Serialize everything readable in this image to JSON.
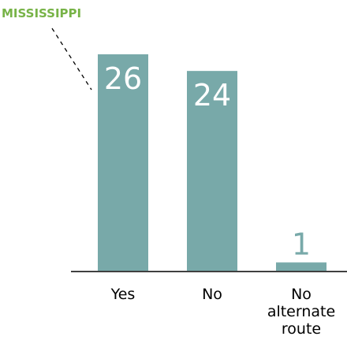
{
  "colors": {
    "bar": "#78a9a9",
    "value_inside": "#ffffff",
    "value_outside": "#78a9a9",
    "highlight": "#77b347",
    "axis": "#000000",
    "leader": "#000000"
  },
  "chart_data": {
    "type": "bar",
    "title": "",
    "xlabel": "",
    "ylabel": "",
    "ylim": [
      0,
      26
    ],
    "grid": false,
    "categories": [
      [
        "Yes"
      ],
      [
        "No"
      ],
      [
        "No",
        "alternate",
        "route"
      ]
    ],
    "values": [
      26,
      24,
      1
    ],
    "annotations": [
      {
        "text": "MISSISSIPPI",
        "points_to_category": 0
      }
    ]
  }
}
